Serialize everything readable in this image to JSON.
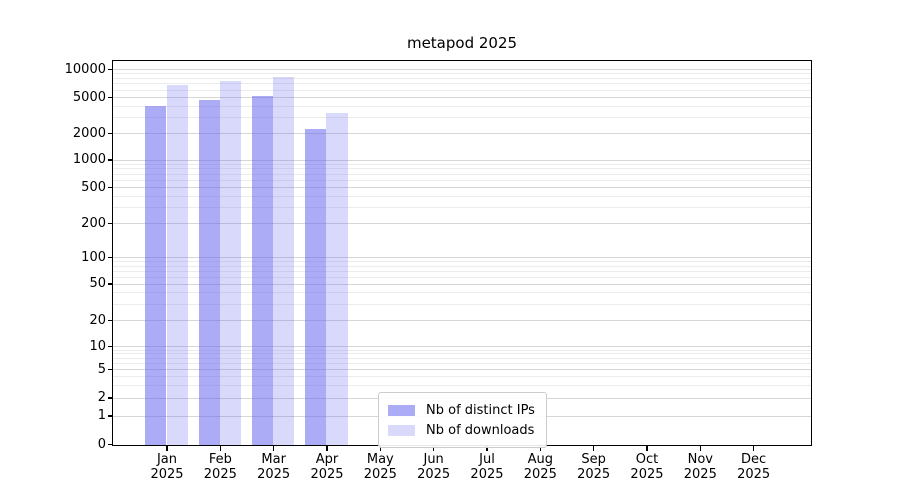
{
  "title": "metapod 2025",
  "chart_data": {
    "type": "bar",
    "title": "metapod 2025",
    "categories": [
      "Jan",
      "Feb",
      "Mar",
      "Apr",
      "May",
      "Jun",
      "Jul",
      "Aug",
      "Sep",
      "Oct",
      "Nov",
      "Dec"
    ],
    "x_year_label": "2025",
    "series": [
      {
        "name": "Nb of distinct IPs",
        "color": "rgba(102,102,238,0.55)",
        "values": [
          4100,
          4800,
          5200,
          2300,
          null,
          null,
          null,
          null,
          null,
          null,
          null,
          null
        ]
      },
      {
        "name": "Nb of downloads",
        "color": "rgba(102,102,238,0.25)",
        "values": [
          6900,
          7700,
          8500,
          3400,
          null,
          null,
          null,
          null,
          null,
          null,
          null,
          null
        ]
      }
    ],
    "yscale": "symlog",
    "ylim": [
      0,
      12000
    ],
    "yticks": [
      0,
      1,
      2,
      5,
      10,
      20,
      50,
      100,
      200,
      500,
      1000,
      2000,
      5000,
      10000
    ],
    "grid": {
      "major": true,
      "minor": true,
      "orientation": "horizontal"
    },
    "legend_position": "lower center",
    "colors": {
      "grid_major": "#d6d6d6",
      "grid_minor": "#ececec",
      "axis": "#000000",
      "background": "#ffffff"
    }
  }
}
